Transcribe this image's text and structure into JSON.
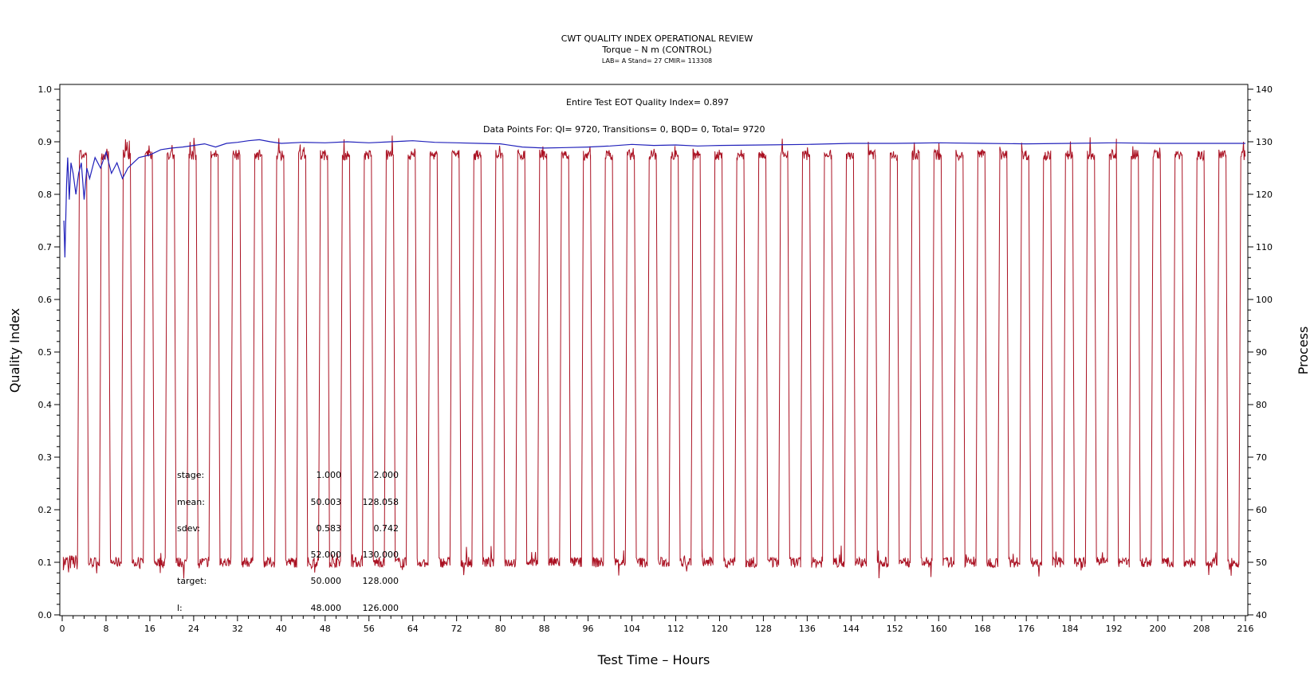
{
  "chart_data": {
    "type": "line",
    "title": "CWT QUALITY INDEX OPERATIONAL REVIEW",
    "subtitle": "Torque – N m (CONTROL)",
    "subtitle2": "LAB= A Stand= 27 CMIR= 113308",
    "xlabel": "Test Time – Hours",
    "ylabel_left": "Quality Index",
    "ylabel_right": "Process",
    "xlim": [
      0,
      216
    ],
    "ylim_left": [
      0,
      1.0
    ],
    "ylim_right": [
      40,
      140
    ],
    "x_ticks": [
      "0",
      "8",
      "16",
      "24",
      "32",
      "40",
      "48",
      "56",
      "64",
      "72",
      "80",
      "88",
      "96",
      "104",
      "112",
      "120",
      "128",
      "136",
      "144",
      "152",
      "160",
      "168",
      "176",
      "184",
      "192",
      "200",
      "208",
      "216"
    ],
    "y_left_ticks": [
      "0.0",
      "0.1",
      "0.2",
      "0.3",
      "0.4",
      "0.5",
      "0.6",
      "0.7",
      "0.8",
      "0.9",
      "1.0"
    ],
    "y_right_ticks": [
      "40",
      "50",
      "60",
      "70",
      "80",
      "90",
      "100",
      "110",
      "120",
      "130",
      "140"
    ],
    "annotation_qi": "Entire Test EOT Quality Index=   0.897",
    "annotation_points": "Data Points For: QI=  9720, Transitions=      0, BQD=      0, Total=  9720",
    "stats_table": {
      "rows": [
        [
          "stage:",
          "1.000",
          "2.000"
        ],
        [
          "mean:",
          "50.003",
          "128.058"
        ],
        [
          "sdev:",
          "0.583",
          "0.742"
        ],
        [
          "",
          "52.000",
          "130.000"
        ],
        [
          "target:",
          "50.000",
          "128.000"
        ],
        [
          "l:",
          "48.000",
          "126.000"
        ]
      ]
    },
    "series": [
      {
        "name": "Quality Index",
        "axis": "left",
        "color": "#2222bb",
        "x": [
          0.3,
          0.5,
          0.8,
          1.0,
          1.3,
          1.6,
          2.0,
          2.5,
          3.0,
          3.5,
          4.0,
          4.5,
          5.0,
          6.0,
          7.0,
          8.0,
          9.0,
          10.0,
          11.0,
          12.0,
          14.0,
          16.0,
          18.0,
          20.0,
          22.0,
          24.0,
          26.0,
          28.0,
          30.0,
          32.0,
          34.0,
          36.0,
          38.0,
          40.0,
          44.0,
          48.0,
          52.0,
          56.0,
          60.0,
          64.0,
          68.0,
          72.0,
          76.0,
          80.0,
          84.0,
          88.0,
          92.0,
          96.0,
          100.0,
          104.0,
          108.0,
          112.0,
          116.0,
          120.0,
          128.0,
          136.0,
          144.0,
          152.0,
          160.0,
          168.0,
          176.0,
          184.0,
          192.0,
          200.0,
          208.0,
          216.0
        ],
        "y": [
          0.75,
          0.68,
          0.82,
          0.87,
          0.79,
          0.86,
          0.84,
          0.8,
          0.84,
          0.86,
          0.79,
          0.85,
          0.83,
          0.87,
          0.85,
          0.88,
          0.84,
          0.86,
          0.83,
          0.85,
          0.87,
          0.875,
          0.885,
          0.888,
          0.89,
          0.893,
          0.896,
          0.89,
          0.897,
          0.899,
          0.902,
          0.904,
          0.9,
          0.897,
          0.899,
          0.898,
          0.9,
          0.898,
          0.9,
          0.902,
          0.899,
          0.898,
          0.897,
          0.896,
          0.89,
          0.888,
          0.889,
          0.89,
          0.892,
          0.895,
          0.893,
          0.894,
          0.892,
          0.893,
          0.894,
          0.895,
          0.897,
          0.897,
          0.898,
          0.897,
          0.896,
          0.897,
          0.898,
          0.897,
          0.897,
          0.897
        ]
      },
      {
        "name": "Process",
        "axis": "right",
        "color": "#aa1122",
        "pattern": "square wave cycling between stage 1 (~50) and stage 2 (~128)",
        "low_value": 50,
        "high_value": 128,
        "cycle_hours": 4,
        "start_hours": 2.8
      }
    ]
  }
}
